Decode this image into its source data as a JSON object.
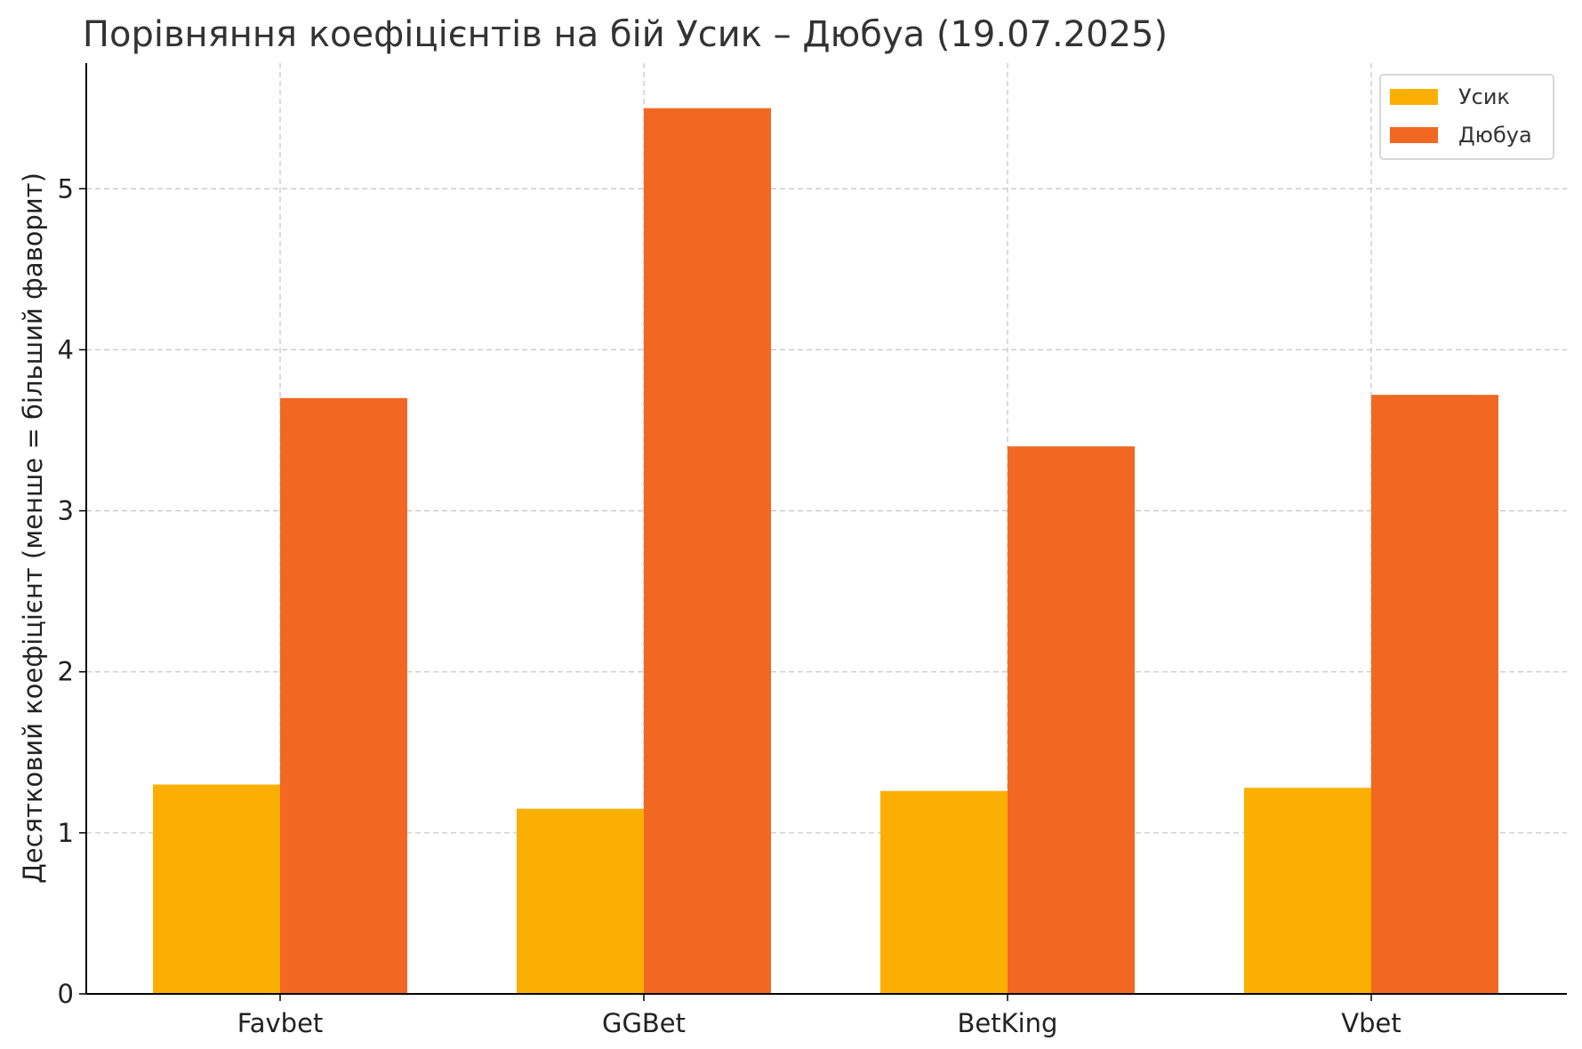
{
  "chart_data": {
    "type": "bar",
    "title": "Порівняння коефіцієнтів на бій Усик – Дюбуа (19.07.2025)",
    "xlabel": "",
    "ylabel": "Десятковий коефіцієнт (менше = більший фаворит)",
    "categories": [
      "Favbet",
      "GGBet",
      "BetKing",
      "Vbet"
    ],
    "series": [
      {
        "name": "Усик",
        "color": "#FCAF03",
        "values": [
          1.3,
          1.15,
          1.26,
          1.28
        ]
      },
      {
        "name": "Дюбуа",
        "color": "#F26822",
        "values": [
          3.7,
          5.5,
          3.4,
          3.72
        ]
      }
    ],
    "ylim": [
      0,
      5.78
    ],
    "yticks": [
      "0",
      "1",
      "2",
      "3",
      "4",
      "5"
    ],
    "grid": true,
    "legend_position": "top-right"
  }
}
